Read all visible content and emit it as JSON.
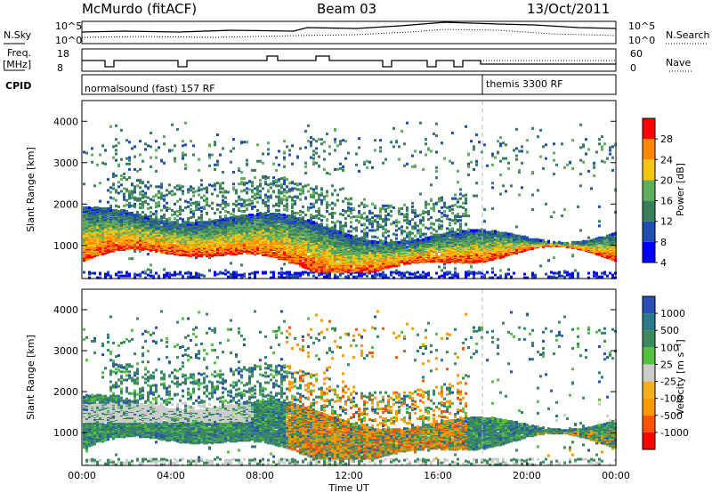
{
  "header": {
    "station": "McMurdo (fitACF)",
    "beam": "Beam 03",
    "date": "13/Oct/2011"
  },
  "noise_panel": {
    "left_label": "N.Sky",
    "right_label": "N.Search",
    "left_ticks": [
      "10^5",
      "10^0"
    ],
    "right_ticks": [
      "10^5",
      "10^0"
    ]
  },
  "freq_panel": {
    "label_line1": "Freq.",
    "label_line2": "[MHz]",
    "left_ticks": [
      "18",
      "8"
    ],
    "right_label": "Nave",
    "right_ticks": [
      "60",
      "0"
    ]
  },
  "cpid_panel": {
    "label": "CPID",
    "segments": [
      {
        "text": "normalsound (fast) 157 RF",
        "start": "00:00",
        "end": "18:00"
      },
      {
        "text": "themis 3300 RF",
        "start": "18:00",
        "end": "24:00"
      }
    ]
  },
  "chart_data": [
    {
      "type": "heatmap",
      "title": "",
      "xlabel": "",
      "ylabel": "Slant Range [km]",
      "xlim": [
        "00:00",
        "24:00"
      ],
      "ylim": [
        200,
        4500
      ],
      "yticks": [
        "1000",
        "2000",
        "3000",
        "4000"
      ],
      "colorbar": {
        "label": "Power [dB]",
        "ticks": [
          "28",
          "24",
          "20",
          "16",
          "12",
          "8",
          "4"
        ],
        "colors": [
          "#0000ff",
          "#1f4fb0",
          "#3b7f5a",
          "#5fae5f",
          "#f5c518",
          "#ff8800",
          "#ff0000"
        ]
      },
      "grid": false
    },
    {
      "type": "heatmap",
      "title": "",
      "xlabel": "Time UT",
      "ylabel": "Slant Range [km]",
      "xlim": [
        "00:00",
        "24:00"
      ],
      "ylim": [
        200,
        4500
      ],
      "yticks": [
        "1000",
        "2000",
        "3000",
        "4000"
      ],
      "xticks": [
        "00:00",
        "04:00",
        "08:00",
        "12:00",
        "16:00",
        "20:00",
        "00:00"
      ],
      "colorbar": {
        "label": "Velocity [m s⁻¹]",
        "ticks": [
          "1000",
          "500",
          "100",
          "25",
          "-25",
          "-100",
          "-500",
          "-1000"
        ],
        "colors": [
          "#ff0000",
          "#ff5500",
          "#ff9900",
          "#f0b020",
          "#cccccc",
          "#55c040",
          "#3b8a5c",
          "#2a7a8a",
          "#2a50b0"
        ]
      },
      "grid": false
    }
  ]
}
